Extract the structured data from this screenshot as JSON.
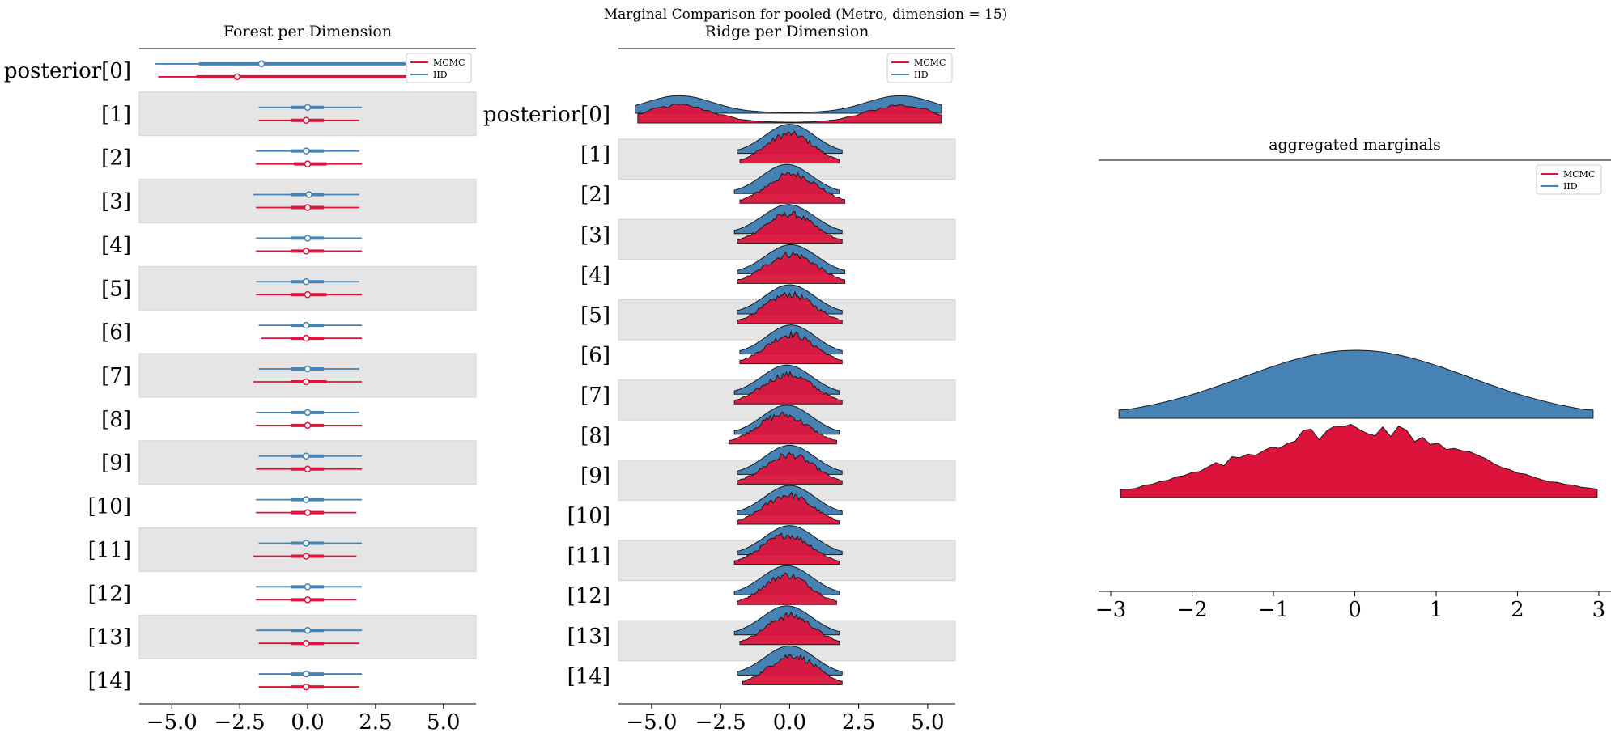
{
  "suptitle": "Marginal Comparison for pooled (Metro, dimension = 15)",
  "colors": {
    "mcmc": "#dc143c",
    "iid": "#4682b4",
    "band": "#e5e5e5"
  },
  "legend": [
    {
      "label": "MCMC",
      "color": "#dc143c"
    },
    {
      "label": "IID",
      "color": "#4682b4"
    }
  ],
  "chart_data": [
    {
      "type": "forest",
      "title": "Forest per Dimension",
      "legend_placement": "top-right",
      "xlim": [
        -6.2,
        6.2
      ],
      "xticks": [
        "−5.0",
        "−2.5",
        "0.0",
        "2.5",
        "5.0"
      ],
      "xtick_values": [
        -5,
        -2.5,
        0,
        2.5,
        5
      ],
      "categories": [
        "posterior[0]",
        "[1]",
        "[2]",
        "[3]",
        "[4]",
        "[5]",
        "[6]",
        "[7]",
        "[8]",
        "[9]",
        "[10]",
        "[11]",
        "[12]",
        "[13]",
        "[14]"
      ],
      "series": [
        {
          "name": "IID",
          "median": [
            -1.7,
            0.0,
            -0.05,
            0.05,
            0.0,
            -0.05,
            -0.05,
            0.0,
            0.0,
            -0.05,
            -0.05,
            -0.05,
            0.0,
            0.0,
            -0.05
          ],
          "hdi_50": [
            [
              -4.0,
              3.6
            ],
            [
              -0.6,
              0.6
            ],
            [
              -0.6,
              0.6
            ],
            [
              -0.6,
              0.6
            ],
            [
              -0.6,
              0.6
            ],
            [
              -0.6,
              0.6
            ],
            [
              -0.6,
              0.6
            ],
            [
              -0.6,
              0.6
            ],
            [
              -0.6,
              0.6
            ],
            [
              -0.6,
              0.6
            ],
            [
              -0.6,
              0.6
            ],
            [
              -0.6,
              0.6
            ],
            [
              -0.6,
              0.6
            ],
            [
              -0.6,
              0.6
            ],
            [
              -0.6,
              0.6
            ]
          ],
          "hdi_94": [
            [
              -5.6,
              5.4
            ],
            [
              -1.8,
              2.0
            ],
            [
              -1.9,
              1.9
            ],
            [
              -2.0,
              1.9
            ],
            [
              -1.9,
              2.0
            ],
            [
              -1.9,
              1.9
            ],
            [
              -1.8,
              2.0
            ],
            [
              -1.8,
              1.9
            ],
            [
              -1.9,
              1.9
            ],
            [
              -1.8,
              2.0
            ],
            [
              -1.9,
              2.0
            ],
            [
              -1.8,
              2.0
            ],
            [
              -1.9,
              2.0
            ],
            [
              -1.9,
              2.0
            ],
            [
              -1.8,
              2.0
            ]
          ]
        },
        {
          "name": "MCMC",
          "median": [
            -2.6,
            -0.05,
            0.0,
            0.0,
            -0.05,
            0.0,
            -0.05,
            -0.05,
            0.0,
            0.0,
            0.0,
            -0.05,
            0.0,
            -0.05,
            -0.05
          ],
          "hdi_50": [
            [
              -4.1,
              3.8
            ],
            [
              -0.6,
              0.6
            ],
            [
              -0.5,
              0.7
            ],
            [
              -0.6,
              0.6
            ],
            [
              -0.6,
              0.6
            ],
            [
              -0.6,
              0.7
            ],
            [
              -0.6,
              0.6
            ],
            [
              -0.6,
              0.7
            ],
            [
              -0.6,
              0.6
            ],
            [
              -0.6,
              0.6
            ],
            [
              -0.6,
              0.6
            ],
            [
              -0.6,
              0.6
            ],
            [
              -0.6,
              0.6
            ],
            [
              -0.6,
              0.6
            ],
            [
              -0.6,
              0.6
            ]
          ],
          "hdi_94": [
            [
              -5.5,
              5.5
            ],
            [
              -1.8,
              1.9
            ],
            [
              -1.9,
              2.0
            ],
            [
              -1.9,
              1.9
            ],
            [
              -1.9,
              2.0
            ],
            [
              -1.9,
              2.0
            ],
            [
              -1.7,
              2.0
            ],
            [
              -2.0,
              2.0
            ],
            [
              -1.9,
              2.0
            ],
            [
              -1.9,
              2.0
            ],
            [
              -1.9,
              1.8
            ],
            [
              -2.0,
              1.8
            ],
            [
              -1.9,
              1.8
            ],
            [
              -1.8,
              1.9
            ],
            [
              -1.8,
              1.9
            ]
          ]
        }
      ]
    },
    {
      "type": "ridge",
      "title": "Ridge per Dimension",
      "legend_placement": "top-right",
      "xlim": [
        -6.2,
        6.0
      ],
      "xticks": [
        "−5.0",
        "−2.5",
        "0.0",
        "2.5",
        "5.0"
      ],
      "xtick_values": [
        -5,
        -2.5,
        0,
        2.5,
        5
      ],
      "categories": [
        "posterior[0]",
        "[1]",
        "[2]",
        "[3]",
        "[4]",
        "[5]",
        "[6]",
        "[7]",
        "[8]",
        "[9]",
        "[10]",
        "[11]",
        "[12]",
        "[13]",
        "[14]"
      ],
      "series": [
        {
          "name": "IID",
          "ranges": [
            [
              -5.6,
              5.5
            ],
            [
              -1.9,
              1.9
            ],
            [
              -2.0,
              1.8
            ],
            [
              -2.0,
              1.9
            ],
            [
              -1.9,
              2.0
            ],
            [
              -1.9,
              1.9
            ],
            [
              -1.8,
              1.9
            ],
            [
              -2.0,
              1.8
            ],
            [
              -2.0,
              1.8
            ],
            [
              -1.9,
              1.9
            ],
            [
              -1.9,
              1.9
            ],
            [
              -1.9,
              1.9
            ],
            [
              -2.0,
              1.8
            ],
            [
              -2.0,
              1.8
            ],
            [
              -1.9,
              1.9
            ]
          ]
        },
        {
          "name": "MCMC",
          "ranges": [
            [
              -5.5,
              5.5
            ],
            [
              -1.8,
              1.8
            ],
            [
              -1.8,
              2.0
            ],
            [
              -1.9,
              1.9
            ],
            [
              -1.9,
              2.0
            ],
            [
              -1.9,
              1.9
            ],
            [
              -1.8,
              1.9
            ],
            [
              -2.0,
              1.9
            ],
            [
              -2.2,
              1.7
            ],
            [
              -1.9,
              1.9
            ],
            [
              -1.9,
              1.8
            ],
            [
              -2.0,
              1.8
            ],
            [
              -1.9,
              1.7
            ],
            [
              -1.8,
              1.8
            ],
            [
              -1.7,
              1.9
            ]
          ]
        }
      ]
    },
    {
      "type": "ridge",
      "title": "aggregated marginals",
      "legend_placement": "top-right",
      "xlim": [
        -3.15,
        3.15
      ],
      "xticks": [
        "−3",
        "−2",
        "−1",
        "0",
        "1",
        "2",
        "3"
      ],
      "xtick_values": [
        -3,
        -2,
        -1,
        0,
        1,
        2,
        3
      ],
      "series": [
        {
          "name": "IID",
          "range": [
            -2.9,
            2.93
          ]
        },
        {
          "name": "MCMC",
          "range": [
            -2.88,
            2.98
          ]
        }
      ]
    }
  ]
}
